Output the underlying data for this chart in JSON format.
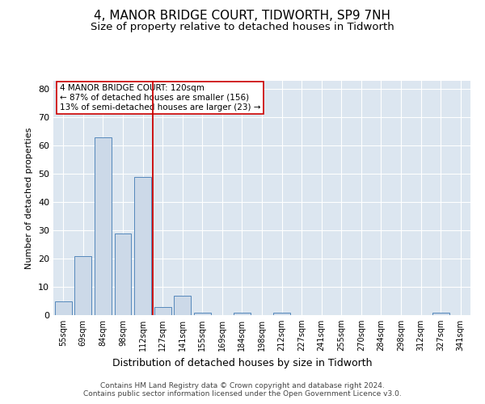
{
  "title": "4, MANOR BRIDGE COURT, TIDWORTH, SP9 7NH",
  "subtitle": "Size of property relative to detached houses in Tidworth",
  "xlabel": "Distribution of detached houses by size in Tidworth",
  "ylabel": "Number of detached properties",
  "bar_labels": [
    "55sqm",
    "69sqm",
    "84sqm",
    "98sqm",
    "112sqm",
    "127sqm",
    "141sqm",
    "155sqm",
    "169sqm",
    "184sqm",
    "198sqm",
    "212sqm",
    "227sqm",
    "241sqm",
    "255sqm",
    "270sqm",
    "284sqm",
    "298sqm",
    "312sqm",
    "327sqm",
    "341sqm"
  ],
  "bar_values": [
    5,
    21,
    63,
    29,
    49,
    3,
    7,
    1,
    0,
    1,
    0,
    1,
    0,
    0,
    0,
    0,
    0,
    0,
    0,
    1,
    0
  ],
  "bar_color": "#ccd9e8",
  "bar_edgecolor": "#5588bb",
  "vline_x": 4.5,
  "vline_color": "#cc0000",
  "annotation_text": "4 MANOR BRIDGE COURT: 120sqm\n← 87% of detached houses are smaller (156)\n13% of semi-detached houses are larger (23) →",
  "annotation_box_color": "#ffffff",
  "annotation_box_edge": "#cc0000",
  "ylim": [
    0,
    83
  ],
  "yticks": [
    0,
    10,
    20,
    30,
    40,
    50,
    60,
    70,
    80
  ],
  "background_color": "#dce6f0",
  "footer": "Contains HM Land Registry data © Crown copyright and database right 2024.\nContains public sector information licensed under the Open Government Licence v3.0.",
  "title_fontsize": 11,
  "subtitle_fontsize": 9.5,
  "ylabel_fontsize": 8,
  "xlabel_fontsize": 9
}
